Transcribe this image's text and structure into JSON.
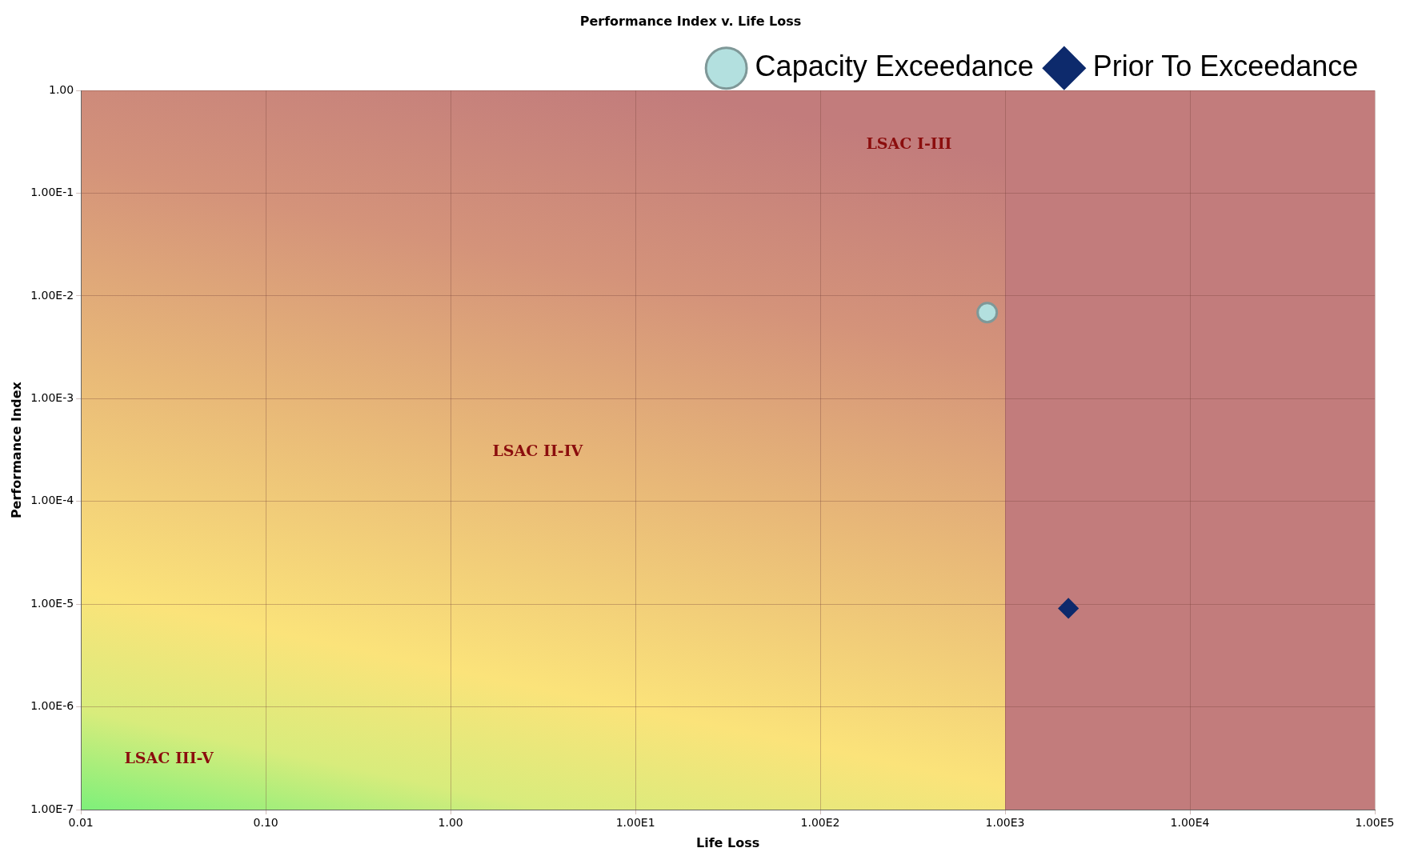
{
  "chart_data": {
    "type": "scatter",
    "title": "Performance Index v. Life Loss",
    "xlabel": "Life Loss",
    "ylabel": "Performance Index",
    "log": "xy",
    "grid": true,
    "legend": "top right",
    "xlim": [
      0.01,
      100000
    ],
    "xticks": [
      0.01,
      {
        "value": 0.1,
        "label": "0.10"
      },
      {
        "value": 1,
        "label": "1.00"
      },
      {
        "value": 10,
        "label": "1.00E1"
      },
      {
        "value": 100,
        "label": "1.00E2"
      },
      {
        "value": 1000,
        "label": "1.00E3"
      },
      {
        "value": 10000,
        "label": "1.00E4"
      },
      {
        "value": 100000,
        "label": "1.00E5"
      }
    ],
    "ylim": [
      1e-07,
      1
    ],
    "yticks": [
      {
        "value": 1e-07,
        "label": "1.00E-7"
      },
      {
        "value": 1e-06,
        "label": "1.00E-6"
      },
      {
        "value": 1e-05,
        "label": "1.00E-5"
      },
      {
        "value": 0.0001,
        "label": "1.00E-4"
      },
      {
        "value": 0.001,
        "label": "1.00E-3"
      },
      {
        "value": 0.01,
        "label": "1.00E-2"
      },
      {
        "value": 0.1,
        "label": "1.00E-1"
      },
      {
        "value": 1,
        "label": "1.00"
      }
    ],
    "series": [
      {
        "name": "Capacity Exceedance",
        "color": "#b3e0df",
        "marker": "circle",
        "x": [
          800
        ],
        "values": [
          0.0069
        ]
      },
      {
        "name": "Prior To Exceedance",
        "color": "#0d2a6c",
        "marker": "diamond",
        "x": [
          2200
        ],
        "values": [
          9.1e-06
        ]
      }
    ],
    "annotations": [
      "LSAC I-III",
      "LSAC II-IV",
      "LSAC III-V"
    ]
  }
}
